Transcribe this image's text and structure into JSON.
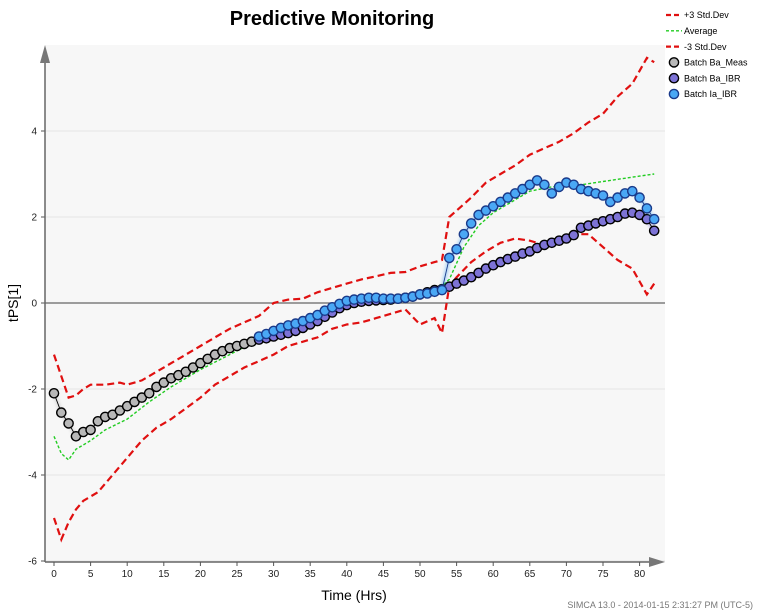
{
  "chart_data": {
    "type": "line",
    "title": "Predictive Monitoring",
    "xlabel": "Time (Hrs)",
    "ylabel": "tPS[1]",
    "xlim": [
      -1.5,
      83
    ],
    "ylim": [
      -6,
      6
    ],
    "x_ticks": [
      0,
      5,
      10,
      15,
      20,
      25,
      30,
      35,
      40,
      45,
      50,
      55,
      60,
      65,
      70,
      75,
      80
    ],
    "y_ticks": [
      -6,
      -4,
      -2,
      0,
      2,
      4
    ],
    "grid": "horizontal",
    "legend_position": "right",
    "series": [
      {
        "name": "+3 Std.Dev",
        "color": "#e01010",
        "style": "dashed",
        "x": [
          0,
          1,
          2,
          3,
          4,
          5,
          7,
          9,
          10,
          12,
          14,
          16,
          18,
          20,
          22,
          24,
          26,
          28,
          30,
          32,
          34,
          36,
          38,
          40,
          42,
          44,
          46,
          48,
          50,
          52,
          53,
          54,
          55,
          57,
          59,
          61,
          63,
          65,
          67,
          69,
          71,
          73,
          75,
          77,
          79,
          80,
          81,
          82
        ],
        "values": [
          -1.2,
          -1.7,
          -2.2,
          -2.15,
          -2.0,
          -1.9,
          -1.9,
          -1.85,
          -1.9,
          -1.8,
          -1.6,
          -1.4,
          -1.2,
          -1.0,
          -0.8,
          -0.6,
          -0.45,
          -0.3,
          0.0,
          0.08,
          0.1,
          0.25,
          0.35,
          0.45,
          0.55,
          0.62,
          0.7,
          0.72,
          0.85,
          0.95,
          1.0,
          2.0,
          2.15,
          2.45,
          2.8,
          3.0,
          3.2,
          3.45,
          3.6,
          3.75,
          3.95,
          4.2,
          4.4,
          4.8,
          5.1,
          5.4,
          5.7,
          5.6
        ]
      },
      {
        "name": "Average",
        "color": "#22cc22",
        "style": "dotted",
        "x": [
          0,
          1,
          2,
          3,
          5,
          7,
          10,
          13,
          16,
          20,
          24,
          28,
          32,
          36,
          40,
          44,
          48,
          50,
          52,
          54,
          56,
          58,
          60,
          62,
          65,
          68,
          72,
          76,
          80,
          82
        ],
        "values": [
          -3.1,
          -3.5,
          -3.65,
          -3.4,
          -3.2,
          -2.95,
          -2.7,
          -2.3,
          -1.95,
          -1.55,
          -1.2,
          -0.85,
          -0.55,
          -0.3,
          -0.1,
          0.05,
          0.15,
          0.2,
          0.25,
          0.55,
          1.3,
          1.8,
          2.1,
          2.3,
          2.6,
          2.7,
          2.75,
          2.85,
          2.95,
          3.0
        ]
      },
      {
        "name": "-3 Std.Dev",
        "color": "#e01010",
        "style": "dashed",
        "x": [
          0,
          1,
          2,
          3,
          4,
          6,
          8,
          10,
          12,
          14,
          16,
          18,
          20,
          22,
          24,
          26,
          28,
          30,
          32,
          34,
          36,
          38,
          40,
          42,
          44,
          46,
          48,
          50,
          52,
          53,
          54,
          55,
          57,
          59,
          61,
          63,
          65,
          67,
          69,
          71,
          73,
          75,
          77,
          79,
          80,
          81,
          82
        ],
        "values": [
          -5.0,
          -5.5,
          -5.1,
          -4.8,
          -4.6,
          -4.4,
          -4.0,
          -3.6,
          -3.2,
          -2.9,
          -2.7,
          -2.45,
          -2.2,
          -1.9,
          -1.7,
          -1.5,
          -1.35,
          -1.2,
          -1.0,
          -0.9,
          -0.8,
          -0.6,
          -0.5,
          -0.45,
          -0.35,
          -0.25,
          -0.15,
          -0.5,
          -0.35,
          -0.7,
          0.4,
          0.6,
          0.95,
          1.2,
          1.4,
          1.5,
          1.45,
          1.35,
          1.5,
          1.6,
          1.6,
          1.3,
          1.0,
          0.8,
          0.5,
          0.2,
          0.45
        ]
      },
      {
        "name": "Batch Ba_Meas",
        "color": "#000000",
        "fill": "#b8b8b8",
        "style": "markers",
        "x": [
          0,
          1,
          2,
          3,
          4,
          5,
          6,
          7,
          8,
          9,
          10,
          11,
          12,
          13,
          14,
          15,
          16,
          17,
          18,
          19,
          20,
          21,
          22,
          23,
          24,
          25,
          26,
          27
        ],
        "values": [
          -2.1,
          -2.55,
          -2.8,
          -3.1,
          -3.0,
          -2.95,
          -2.75,
          -2.65,
          -2.6,
          -2.5,
          -2.4,
          -2.3,
          -2.2,
          -2.1,
          -1.95,
          -1.85,
          -1.75,
          -1.68,
          -1.6,
          -1.5,
          -1.4,
          -1.3,
          -1.2,
          -1.12,
          -1.05,
          -1.0,
          -0.95,
          -0.9
        ]
      },
      {
        "name": "Batch Ba_IBR",
        "color": "#000000",
        "fill": "#7d73d6",
        "style": "markers",
        "x": [
          28,
          29,
          30,
          31,
          32,
          33,
          34,
          35,
          36,
          37,
          38,
          39,
          40,
          41,
          42,
          43,
          44,
          45,
          46,
          47,
          48,
          49,
          50,
          51,
          52,
          53,
          54,
          55,
          56,
          57,
          58,
          59,
          60,
          61,
          62,
          63,
          64,
          65,
          66,
          67,
          68,
          69,
          70,
          71,
          72,
          73,
          74,
          75,
          76,
          77,
          78,
          79,
          80,
          81,
          82
        ],
        "values": [
          -0.85,
          -0.82,
          -0.78,
          -0.74,
          -0.7,
          -0.65,
          -0.58,
          -0.5,
          -0.42,
          -0.32,
          -0.22,
          -0.12,
          -0.05,
          0.0,
          0.03,
          0.05,
          0.06,
          0.07,
          0.08,
          0.1,
          0.12,
          0.15,
          0.2,
          0.25,
          0.3,
          0.32,
          0.38,
          0.45,
          0.52,
          0.6,
          0.7,
          0.8,
          0.88,
          0.95,
          1.02,
          1.08,
          1.15,
          1.2,
          1.28,
          1.35,
          1.4,
          1.45,
          1.5,
          1.58,
          1.75,
          1.8,
          1.85,
          1.9,
          1.95,
          2.0,
          2.08,
          2.1,
          2.05,
          1.95,
          1.68
        ]
      },
      {
        "name": "Batch Ia_IBR",
        "color": "#1a3a8a",
        "fill": "#4aa8f5",
        "style": "markers",
        "x": [
          28,
          29,
          30,
          31,
          32,
          33,
          34,
          35,
          36,
          37,
          38,
          39,
          40,
          41,
          42,
          43,
          44,
          45,
          46,
          47,
          48,
          49,
          50,
          51,
          52,
          53,
          54,
          55,
          56,
          57,
          58,
          59,
          60,
          61,
          62,
          63,
          64,
          65,
          66,
          67,
          68,
          69,
          70,
          71,
          72,
          73,
          74,
          75,
          76,
          77,
          78,
          79,
          80,
          81,
          82
        ],
        "values": [
          -0.78,
          -0.72,
          -0.65,
          -0.58,
          -0.52,
          -0.48,
          -0.42,
          -0.35,
          -0.28,
          -0.18,
          -0.1,
          -0.02,
          0.05,
          0.08,
          0.1,
          0.12,
          0.12,
          0.1,
          0.1,
          0.1,
          0.12,
          0.15,
          0.2,
          0.22,
          0.26,
          0.3,
          1.05,
          1.25,
          1.6,
          1.85,
          2.05,
          2.15,
          2.25,
          2.35,
          2.45,
          2.55,
          2.65,
          2.75,
          2.85,
          2.75,
          2.55,
          2.7,
          2.8,
          2.75,
          2.65,
          2.6,
          2.55,
          2.5,
          2.35,
          2.45,
          2.55,
          2.6,
          2.45,
          2.2,
          1.95
        ]
      }
    ]
  },
  "footer": "SIMCA 13.0 - 2014-01-15 2:31:27 PM (UTC-5)"
}
